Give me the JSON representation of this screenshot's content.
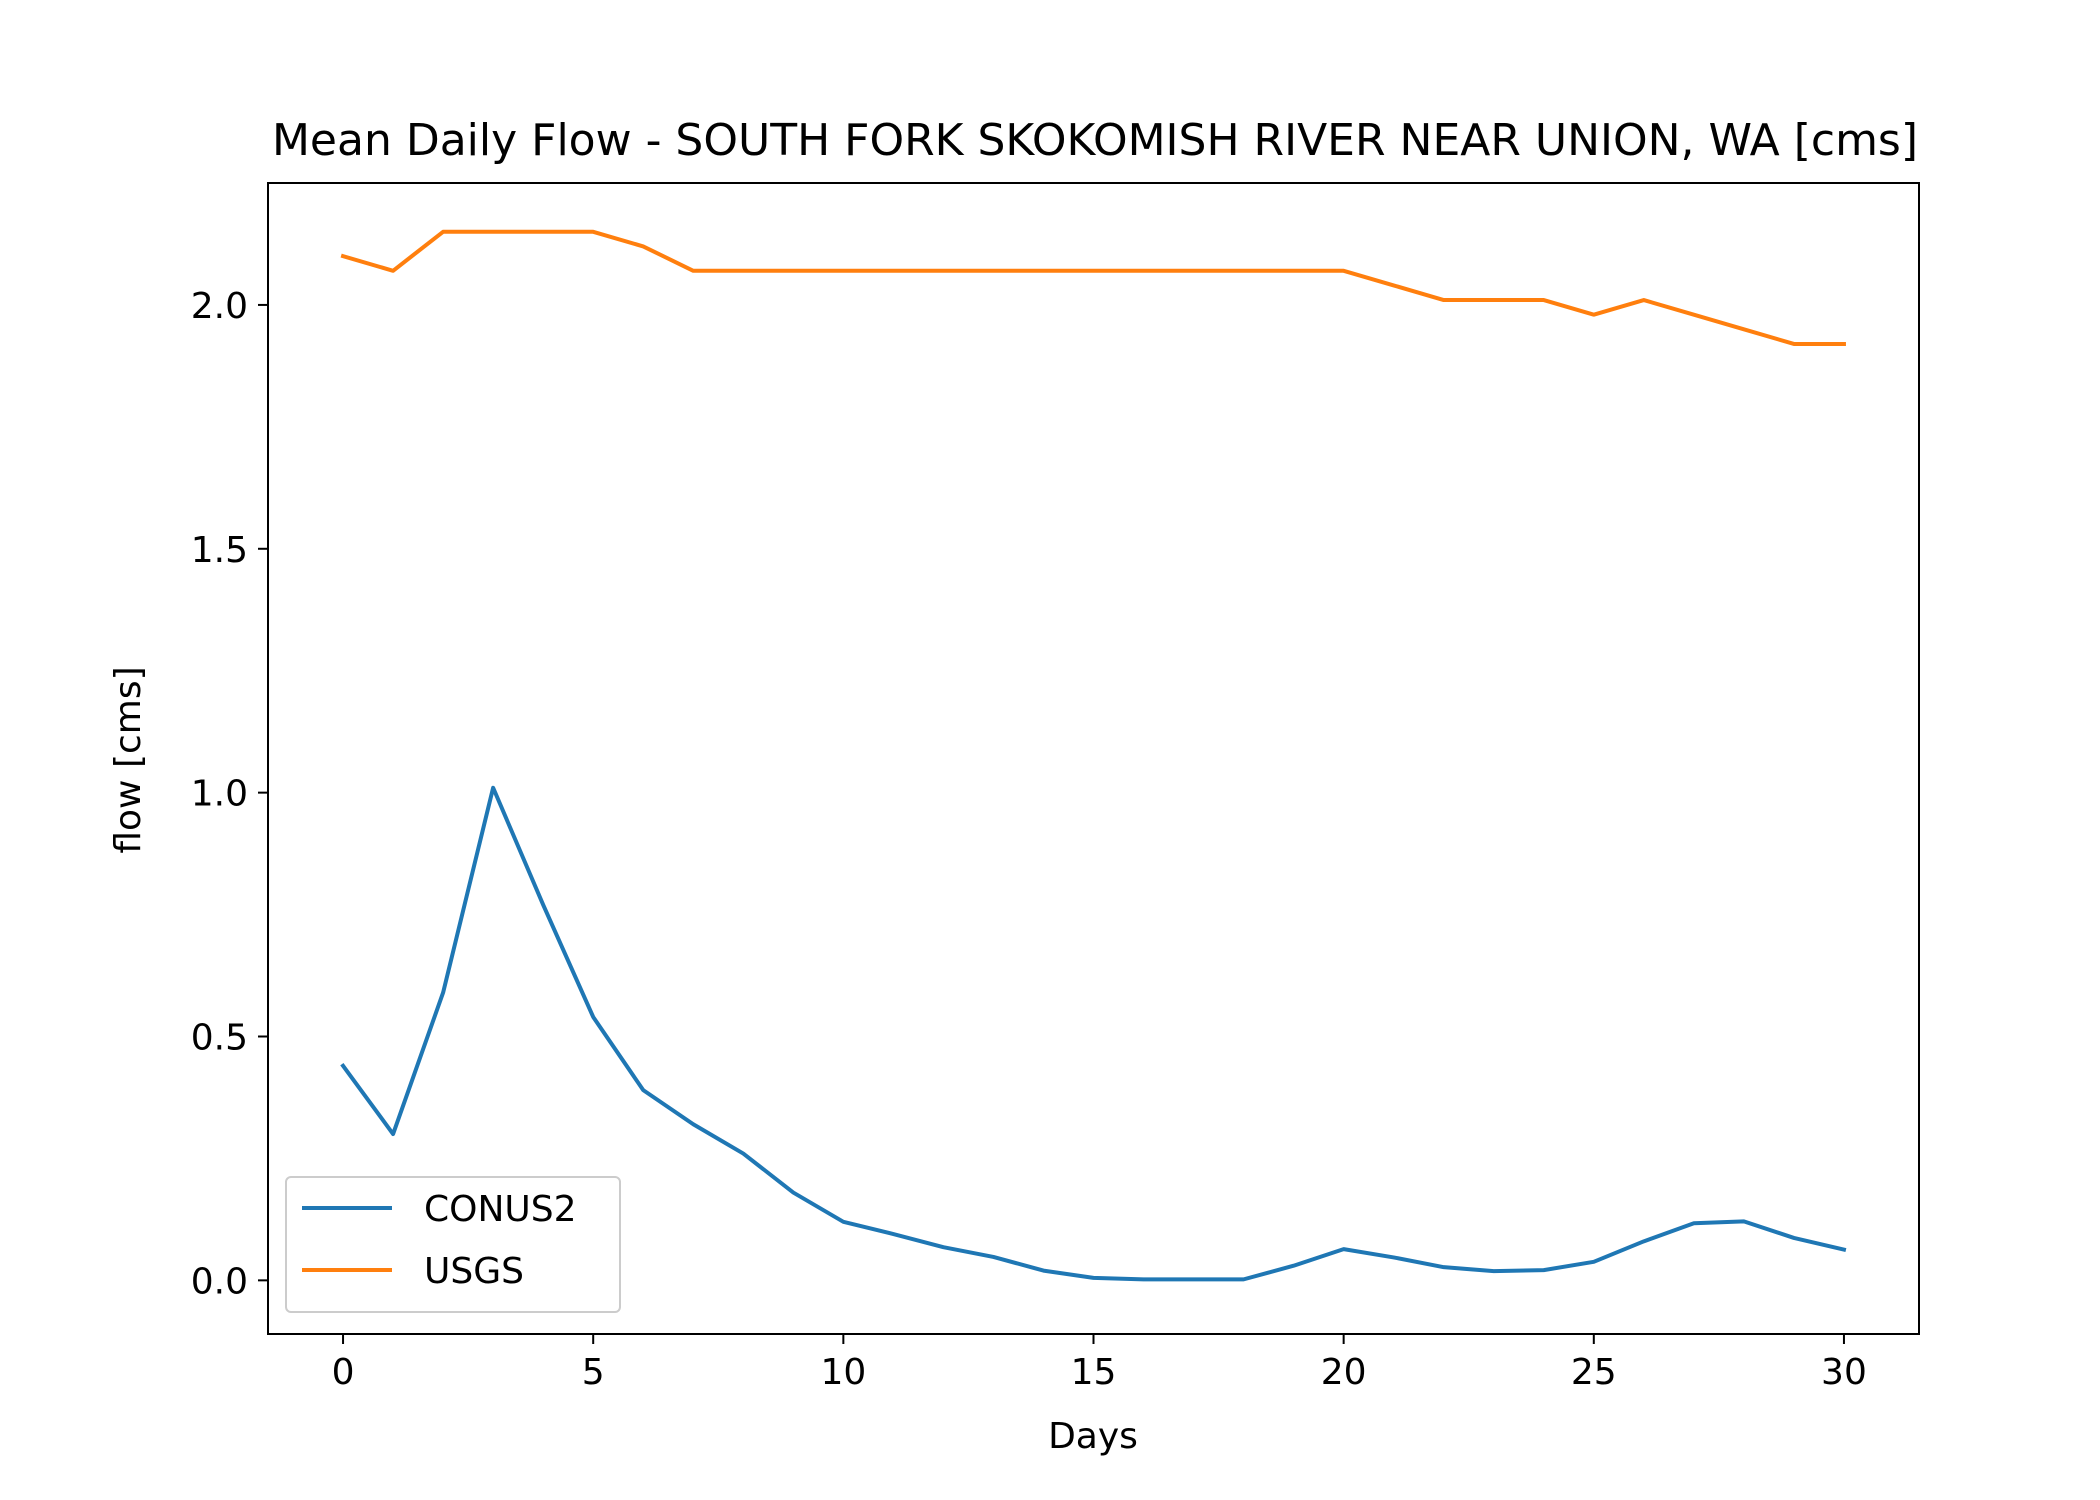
{
  "chart_data": {
    "type": "line",
    "title": "Mean Daily Flow - SOUTH FORK SKOKOMISH RIVER NEAR UNION, WA [cms]",
    "xlabel": "Days",
    "ylabel": "flow [cms]",
    "xlim": [
      -1.5,
      31.5
    ],
    "ylim": [
      -0.11,
      2.25
    ],
    "xticks": [
      0,
      5,
      10,
      15,
      20,
      25,
      30
    ],
    "yticks": [
      0.0,
      0.5,
      1.0,
      1.5,
      2.0
    ],
    "xtick_labels": [
      "0",
      "5",
      "10",
      "15",
      "20",
      "25",
      "30"
    ],
    "ytick_labels": [
      "0.0",
      "0.5",
      "1.0",
      "1.5",
      "2.0"
    ],
    "grid": false,
    "legend_position": "lower-left",
    "x": [
      0,
      1,
      2,
      3,
      4,
      5,
      6,
      7,
      8,
      9,
      10,
      11,
      12,
      13,
      14,
      15,
      16,
      17,
      18,
      19,
      20,
      21,
      22,
      23,
      24,
      25,
      26,
      27,
      28,
      29,
      30
    ],
    "series": [
      {
        "name": "CONUS2",
        "color": "#1f77b4",
        "values": [
          0.44,
          0.3,
          0.59,
          1.01,
          0.77,
          0.54,
          0.39,
          0.32,
          0.26,
          0.18,
          0.12,
          0.095,
          0.068,
          0.048,
          0.02,
          0.005,
          0.002,
          0.002,
          0.002,
          0.03,
          0.064,
          0.047,
          0.027,
          0.019,
          0.021,
          0.038,
          0.08,
          0.117,
          0.121,
          0.087,
          0.063
        ]
      },
      {
        "name": "USGS",
        "color": "#ff7f0e",
        "values": [
          2.1,
          2.07,
          2.15,
          2.15,
          2.15,
          2.15,
          2.12,
          2.07,
          2.07,
          2.07,
          2.07,
          2.07,
          2.07,
          2.07,
          2.07,
          2.07,
          2.07,
          2.07,
          2.07,
          2.07,
          2.07,
          2.04,
          2.01,
          2.01,
          2.01,
          1.98,
          2.01,
          1.98,
          1.95,
          1.92,
          1.92
        ]
      }
    ]
  }
}
